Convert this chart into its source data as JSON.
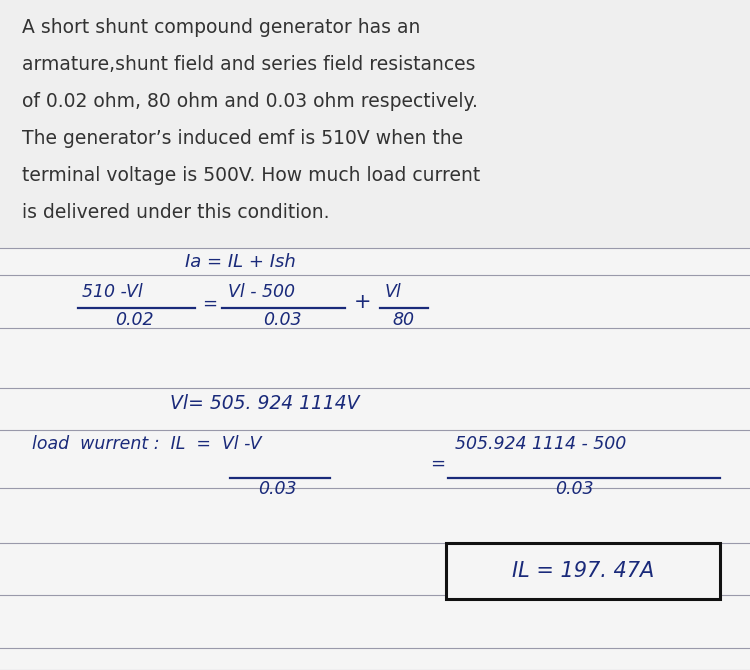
{
  "bg_color": "#efefef",
  "ruled_bg": "#f5f5f5",
  "text_color_dark": "#333333",
  "text_color_hand": "#1a2a7a",
  "problem_text": [
    "A short shunt compound generator has an",
    "armature,shunt field and series field resistances",
    "of 0.02 ohm, 80 ohm and 0.03 ohm respectively.",
    "The generator’s induced emf is 510V when the",
    "terminal voltage is 500V. How much load current",
    "is delivered under this condition."
  ],
  "line_color": "#9999aa",
  "box_color": "#111111",
  "figsize": [
    7.5,
    6.7
  ],
  "dpi": 100
}
